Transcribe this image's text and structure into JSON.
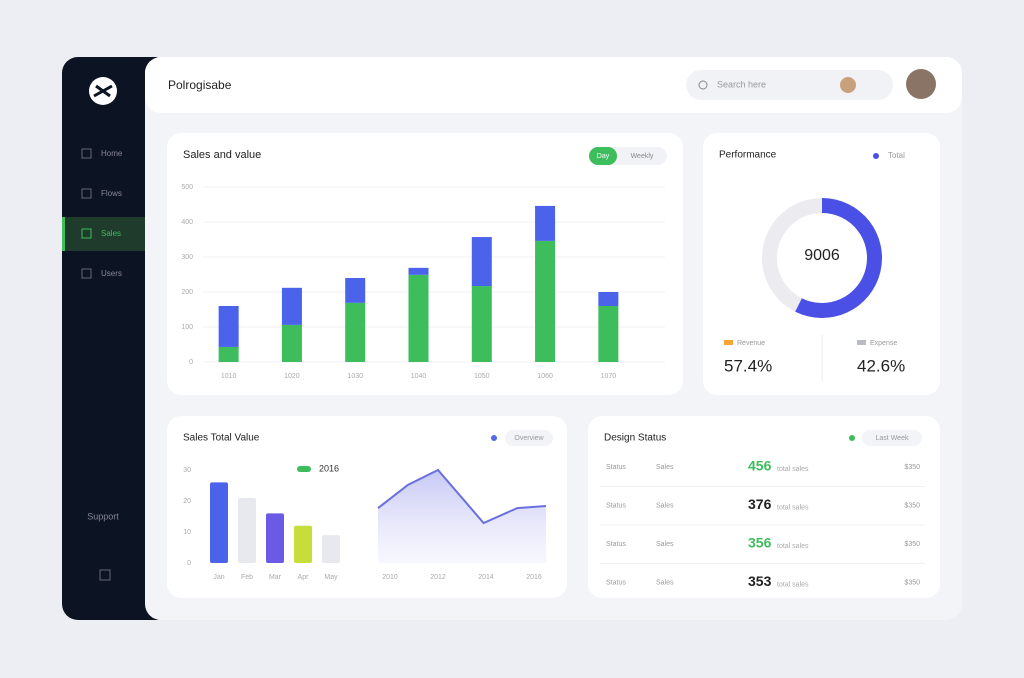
{
  "header": {
    "title": "Polrogisabe",
    "search": "Search here"
  },
  "sidebar": {
    "items": [
      "Home",
      "Flows",
      "Sales",
      "Users"
    ],
    "active": 2,
    "footer": "Support"
  },
  "chart_data": [
    {
      "type": "bar",
      "stacked": true,
      "title": "Sales and value",
      "toggle": [
        "Day",
        "Weekly"
      ],
      "categories": [
        "1010",
        "1020",
        "1030",
        "1040",
        "1050",
        "1060",
        "1070"
      ],
      "series": [
        {
          "color": "#3ebd5c",
          "values": [
            43,
            106,
            169,
            249,
            217,
            346,
            160
          ]
        },
        {
          "color": "#4a63ea",
          "values": [
            117,
            106,
            71,
            20,
            140,
            100,
            40
          ]
        }
      ],
      "ylim": [
        0,
        500
      ],
      "yticks": [
        0,
        100,
        200,
        300,
        400,
        500
      ],
      "grid": true
    },
    {
      "type": "donut",
      "title": "Performance",
      "legend": "Total",
      "center_label": "9006",
      "categories": [
        "Revenue",
        "Expense"
      ],
      "values": [
        57.4,
        42.6
      ],
      "value_labels": [
        "57.4%",
        "42.6%"
      ],
      "colors": [
        "#4a4fe6",
        "#ececf0"
      ],
      "swatches": [
        "#f4a53a",
        "#b9bcc6"
      ]
    },
    {
      "type": "bar",
      "title": "Sales Total Value",
      "legend": "Overview",
      "legend_color": "#5468e8",
      "note": "2016",
      "note_color": "#3ebd5c",
      "categories": [
        "Jan",
        "Feb",
        "Mar",
        "Apr",
        "May"
      ],
      "values": [
        26,
        21,
        16,
        12,
        9
      ],
      "colors": [
        "#4a63ea",
        "#e8e9ee",
        "#6a5ae6",
        "#c6dd3a",
        "#e8e9ee"
      ],
      "ylim": [
        0,
        30
      ],
      "yticks": [
        0,
        10,
        20,
        30
      ]
    },
    {
      "type": "area",
      "x": [
        2009.5,
        2010.75,
        2012,
        2013.9,
        2015.3,
        2016.5
      ],
      "values": [
        17.7,
        25.2,
        30,
        12.9,
        17.7,
        18.4
      ],
      "xlim": [
        2009,
        2017
      ],
      "xticks": [
        2010,
        2012,
        2014,
        2016
      ],
      "ylim": [
        0,
        30
      ],
      "color": "#6a6fe0"
    }
  ],
  "table": {
    "title": "Design Status",
    "legend": "Last Week",
    "legend_color": "#3ebd5c",
    "highlight_color": "#3ebd5c",
    "rows": [
      [
        "Status",
        "Sales",
        "456",
        "total sales",
        "$350"
      ],
      [
        "Status",
        "Sales",
        "376",
        "total sales",
        "$350"
      ],
      [
        "Status",
        "Sales",
        "356",
        "total sales",
        "$350"
      ],
      [
        "Status",
        "Sales",
        "353",
        "total sales",
        "$350"
      ]
    ],
    "highlight": [
      true,
      false,
      true,
      false
    ]
  }
}
